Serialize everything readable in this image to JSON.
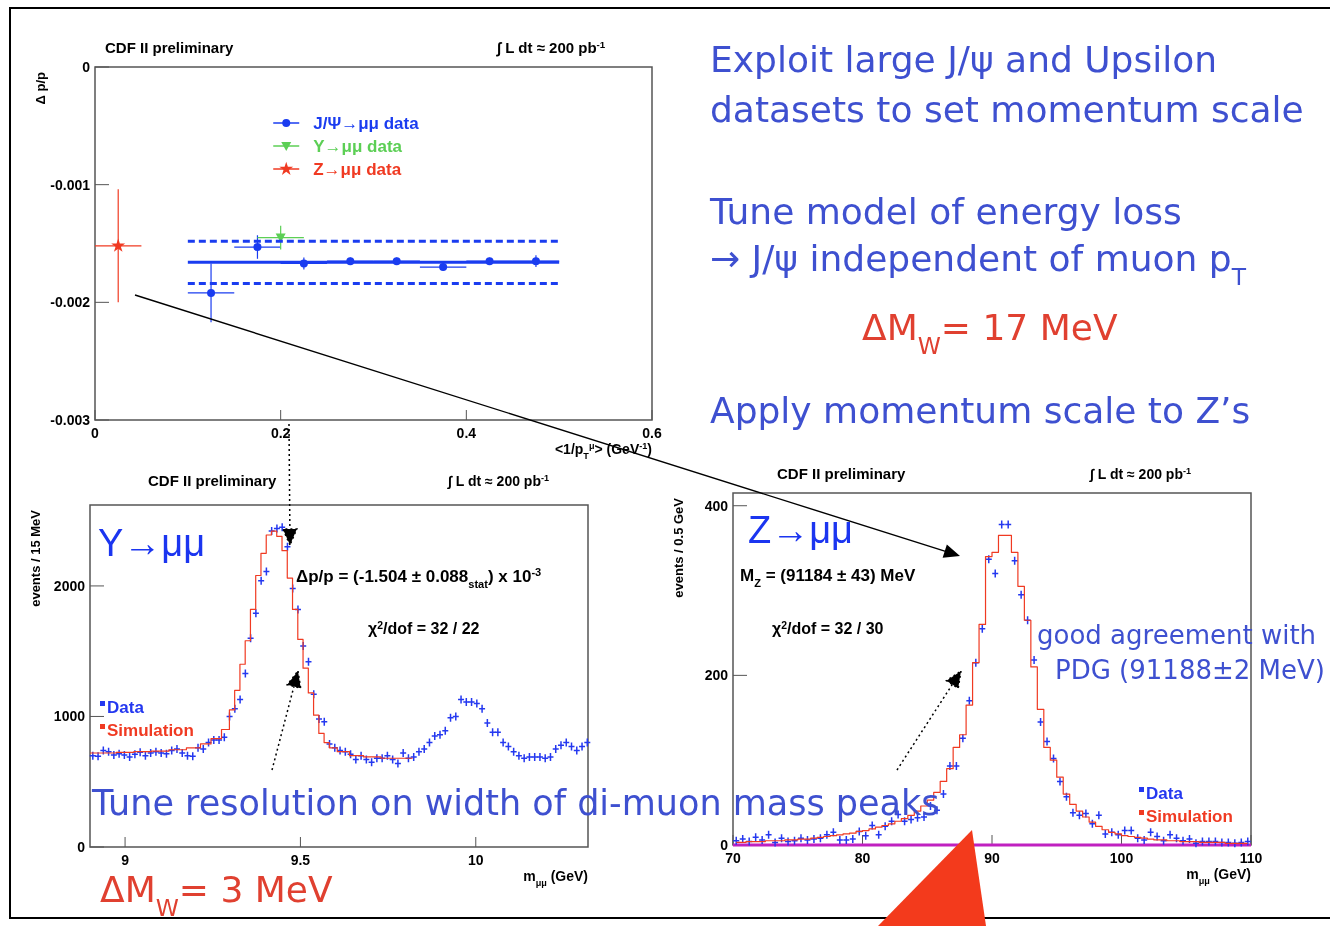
{
  "chart_data": [
    {
      "type": "scatter",
      "title": "CDF II preliminary",
      "xlabel": "<1/p$_{T}$$^{μ}$> (GeV$^{-1}$)",
      "ylabel": "Δ p/p",
      "xlim": [
        0,
        0.6
      ],
      "ylim": [
        -0.003,
        0
      ],
      "xticks": [
        0,
        0.2,
        0.4,
        0.6
      ],
      "yticks": [
        0,
        -0.001,
        -0.002,
        -0.003
      ],
      "legend": "top",
      "annotations": [
        "∫ L dt ≈ 200 pb$^{-1}$"
      ],
      "series": [
        {
          "name": "J/Ψ→μμ data",
          "color": "#1a3cf0",
          "marker": "circle",
          "x": [
            0.125,
            0.175,
            0.225,
            0.275,
            0.325,
            0.375,
            0.425,
            0.475
          ],
          "values": [
            -0.00192,
            -0.00153,
            -0.00167,
            -0.00165,
            -0.00165,
            -0.0017,
            -0.00165,
            -0.00165
          ],
          "errors": [
            0.00025,
            0.0001,
            5e-05,
            3e-05,
            3e-05,
            3e-05,
            3e-05,
            5e-05
          ],
          "xerrors": [
            0.025,
            0.025,
            0.025,
            0.025,
            0.025,
            0.025,
            0.025,
            0.025
          ]
        },
        {
          "name": "Υ→μμ data",
          "color": "#5ccf55",
          "marker": "triangle",
          "x": [
            0.2
          ],
          "values": [
            -0.00145
          ],
          "errors": [
            0.0001
          ],
          "xerrors": [
            0.025
          ]
        },
        {
          "name": "Z→μμ data",
          "color": "#f03a22",
          "marker": "star",
          "x": [
            0.025
          ],
          "values": [
            -0.00152
          ],
          "errors": [
            0.00048
          ],
          "xerrors": [
            0.025
          ]
        },
        {
          "type": "line",
          "color": "#1a3cf0",
          "line_style": "solid",
          "x": [
            0.1,
            0.5
          ],
          "values": [
            -0.00166,
            -0.00166
          ]
        },
        {
          "type": "line",
          "color": "#1a3cf0",
          "line_style": "dashed",
          "x": [
            0.1,
            0.5
          ],
          "values": [
            -0.00148,
            -0.00148
          ]
        },
        {
          "type": "line",
          "color": "#1a3cf0",
          "line_style": "dashed",
          "x": [
            0.1,
            0.5
          ],
          "values": [
            -0.00184,
            -0.00184
          ]
        }
      ]
    },
    {
      "type": "scatter",
      "title": "CDF II preliminary",
      "xlabel": "m$_{μμ}$ (GeV)",
      "ylabel": "events / 15 MeV",
      "xlim": [
        8.9,
        10.32
      ],
      "ylim": [
        0,
        2620
      ],
      "xticks": [
        9,
        9.5,
        10
      ],
      "yticks": [
        0,
        1000,
        2000
      ],
      "legend": "left",
      "annotations": [
        "∫ L dt ≈ 200 pb$^{-1}$",
        "Υ→μμ",
        "Δp/p = (-1.504 ± 0.088$_{stat}$) x 10$^{-3}$",
        "χ$^{2}$/dof = 32 / 22"
      ],
      "series": [
        {
          "name": "Data",
          "color": "#2438f0",
          "marker": "cross",
          "x": [
            8.908,
            8.923,
            8.938,
            8.953,
            8.968,
            8.983,
            8.998,
            9.013,
            9.028,
            9.043,
            9.058,
            9.073,
            9.088,
            9.103,
            9.118,
            9.133,
            9.148,
            9.163,
            9.178,
            9.193,
            9.208,
            9.223,
            9.238,
            9.253,
            9.268,
            9.283,
            9.298,
            9.313,
            9.328,
            9.343,
            9.358,
            9.373,
            9.388,
            9.403,
            9.418,
            9.433,
            9.448,
            9.463,
            9.478,
            9.493,
            9.508,
            9.523,
            9.538,
            9.553,
            9.568,
            9.583,
            9.598,
            9.613,
            9.628,
            9.643,
            9.658,
            9.673,
            9.688,
            9.703,
            9.718,
            9.733,
            9.748,
            9.763,
            9.778,
            9.793,
            9.808,
            9.823,
            9.838,
            9.853,
            9.868,
            9.883,
            9.898,
            9.913,
            9.928,
            9.943,
            9.958,
            9.973,
            9.988,
            10.003,
            10.018,
            10.033,
            10.048,
            10.063,
            10.078,
            10.093,
            10.108,
            10.123,
            10.138,
            10.153,
            10.168,
            10.183,
            10.198,
            10.213,
            10.228,
            10.243,
            10.258,
            10.273,
            10.288,
            10.303,
            10.318
          ],
          "values": [
            700,
            695,
            740,
            730,
            705,
            715,
            705,
            690,
            710,
            725,
            700,
            720,
            730,
            720,
            715,
            740,
            750,
            720,
            700,
            695,
            760,
            750,
            800,
            820,
            820,
            840,
            1000,
            1060,
            1130,
            1330,
            1600,
            1790,
            2040,
            2110,
            2420,
            2440,
            2450,
            2300,
            1980,
            1820,
            1540,
            1420,
            1170,
            980,
            960,
            790,
            760,
            740,
            730,
            710,
            670,
            700,
            670,
            650,
            680,
            680,
            700,
            670,
            640,
            720,
            680,
            690,
            730,
            750,
            800,
            850,
            860,
            890,
            990,
            1000,
            1130,
            1110,
            1110,
            1100,
            1060,
            950,
            880,
            880,
            800,
            770,
            730,
            700,
            680,
            690,
            690,
            690,
            680,
            690,
            750,
            780,
            800,
            770,
            740,
            770,
            800
          ]
        },
        {
          "name": "Simulation",
          "type": "step",
          "color": "#f03a22",
          "x": [
            8.9,
            8.95,
            9.0,
            9.05,
            9.1,
            9.15,
            9.2,
            9.23,
            9.26,
            9.29,
            9.305,
            9.32,
            9.335,
            9.35,
            9.365,
            9.38,
            9.395,
            9.41,
            9.425,
            9.44,
            9.455,
            9.47,
            9.485,
            9.5,
            9.515,
            9.53,
            9.545,
            9.56,
            9.575,
            9.59,
            9.62,
            9.66,
            9.7,
            9.76,
            9.82
          ],
          "values": [
            720,
            720,
            725,
            730,
            735,
            745,
            760,
            790,
            830,
            900,
            1050,
            1200,
            1400,
            1580,
            1820,
            2080,
            2250,
            2390,
            2420,
            2380,
            2270,
            2060,
            1820,
            1590,
            1370,
            1180,
            1010,
            870,
            800,
            760,
            730,
            700,
            690,
            680,
            680
          ]
        }
      ]
    },
    {
      "type": "scatter",
      "title": "CDF II preliminary",
      "xlabel": "m$_{μμ}$ (GeV)",
      "ylabel": "events / 0.5 GeV",
      "xlim": [
        70,
        110
      ],
      "ylim": [
        0,
        415
      ],
      "xticks": [
        70,
        80,
        90,
        100,
        110
      ],
      "yticks": [
        0,
        200,
        400
      ],
      "legend": "bottom right",
      "annotations": [
        "∫ L dt ≈ 200 pb$^{-1}$",
        "Z→μμ",
        "M$_{Z}$ = (91184 ± 43) MeV",
        "χ$^{2}$/dof = 32 / 30"
      ],
      "series": [
        {
          "type": "line",
          "color": "#c020c0",
          "x": [
            70,
            110
          ],
          "values": [
            0,
            0
          ]
        },
        {
          "name": "Data",
          "color": "#2438f0",
          "marker": "cross",
          "x": [
            70.25,
            70.75,
            71.25,
            71.75,
            72.25,
            72.75,
            73.25,
            73.75,
            74.25,
            74.75,
            75.25,
            75.75,
            76.25,
            76.75,
            77.25,
            77.75,
            78.25,
            78.75,
            79.25,
            79.75,
            80.25,
            80.75,
            81.25,
            81.75,
            82.25,
            82.75,
            83.25,
            83.75,
            84.25,
            84.75,
            85.25,
            85.75,
            86.25,
            86.75,
            87.25,
            87.75,
            88.25,
            88.75,
            89.25,
            89.75,
            90.25,
            90.75,
            91.25,
            91.75,
            92.25,
            92.75,
            93.25,
            93.75,
            94.25,
            94.75,
            95.25,
            95.75,
            96.25,
            96.75,
            97.25,
            97.75,
            98.25,
            98.75,
            99.25,
            99.75,
            100.25,
            100.75,
            101.25,
            101.75,
            102.25,
            102.75,
            103.25,
            103.75,
            104.25,
            104.75,
            105.25,
            105.75,
            106.25,
            106.75,
            107.25,
            107.75,
            108.25,
            108.75,
            109.25,
            109.75
          ],
          "values": [
            5,
            7,
            4,
            9,
            6,
            12,
            3,
            8,
            4,
            5,
            8,
            6,
            7,
            8,
            12,
            15,
            6,
            6,
            7,
            16,
            11,
            23,
            12,
            22,
            28,
            36,
            28,
            30,
            32,
            33,
            46,
            41,
            60,
            93,
            93,
            126,
            170,
            215,
            255,
            337,
            320,
            378,
            378,
            335,
            295,
            265,
            218,
            145,
            122,
            102,
            75,
            57,
            38,
            35,
            37,
            25,
            35,
            13,
            15,
            12,
            17,
            17,
            8,
            6,
            15,
            10,
            5,
            12,
            8,
            5,
            7,
            2,
            4,
            4,
            4,
            3,
            3,
            2,
            3,
            4
          ]
        },
        {
          "name": "Simulation",
          "type": "step",
          "color": "#f03a22",
          "x": [
            70.25,
            70.75,
            71.25,
            71.75,
            72.25,
            72.75,
            73.25,
            73.75,
            74.25,
            74.75,
            75.25,
            75.75,
            76.25,
            76.75,
            77.25,
            77.75,
            78.25,
            78.75,
            79.25,
            79.75,
            80.25,
            80.75,
            81.25,
            81.75,
            82.25,
            82.75,
            83.25,
            83.75,
            84.25,
            84.75,
            85.25,
            85.75,
            86.25,
            86.75,
            87.25,
            87.75,
            88.25,
            88.75,
            89.25,
            89.75,
            90.25,
            90.75,
            91.25,
            91.75,
            92.25,
            92.75,
            93.25,
            93.75,
            94.25,
            94.75,
            95.25,
            95.75,
            96.25,
            96.75,
            97.25,
            97.75,
            98.25,
            98.75,
            99.25,
            99.75,
            100.25,
            100.75,
            101.25,
            101.75,
            102.25,
            102.75,
            103.25,
            103.75,
            104.25,
            104.75,
            105.25,
            105.75,
            106.25,
            106.75,
            107.25,
            107.75,
            108.25,
            108.75,
            109.25,
            109.75
          ],
          "values": [
            3,
            3,
            4,
            4,
            4,
            5,
            5,
            5,
            6,
            6,
            7,
            7,
            8,
            9,
            10,
            11,
            12,
            13,
            14,
            16,
            17,
            19,
            21,
            23,
            25,
            28,
            31,
            35,
            40,
            46,
            53,
            62,
            75,
            90,
            115,
            130,
            165,
            215,
            260,
            340,
            345,
            365,
            365,
            345,
            305,
            265,
            210,
            160,
            115,
            100,
            80,
            60,
            48,
            40,
            33,
            27,
            22,
            18,
            15,
            13,
            11,
            10,
            9,
            8,
            7,
            6,
            6,
            5,
            5,
            4,
            4,
            4,
            3,
            3,
            3,
            3,
            2,
            2,
            2,
            2
          ]
        }
      ]
    },
    {
      "type": "other",
      "annotations": [
        "Exploit large J/ψ and Upsilon",
        "datasets to set momentum scale",
        "Tune model of energy loss",
        "→ J/ψ independent of muon p$_{T}$",
        "ΔM$_{W}$= 17 MeV",
        "Apply momentum scale to Z’s",
        "Tune resolution on width of di-muon mass peaks",
        "ΔM$_{W}$= 3 MeV",
        "good agreement with",
        "PDG (91188±2 MeV)"
      ]
    }
  ]
}
